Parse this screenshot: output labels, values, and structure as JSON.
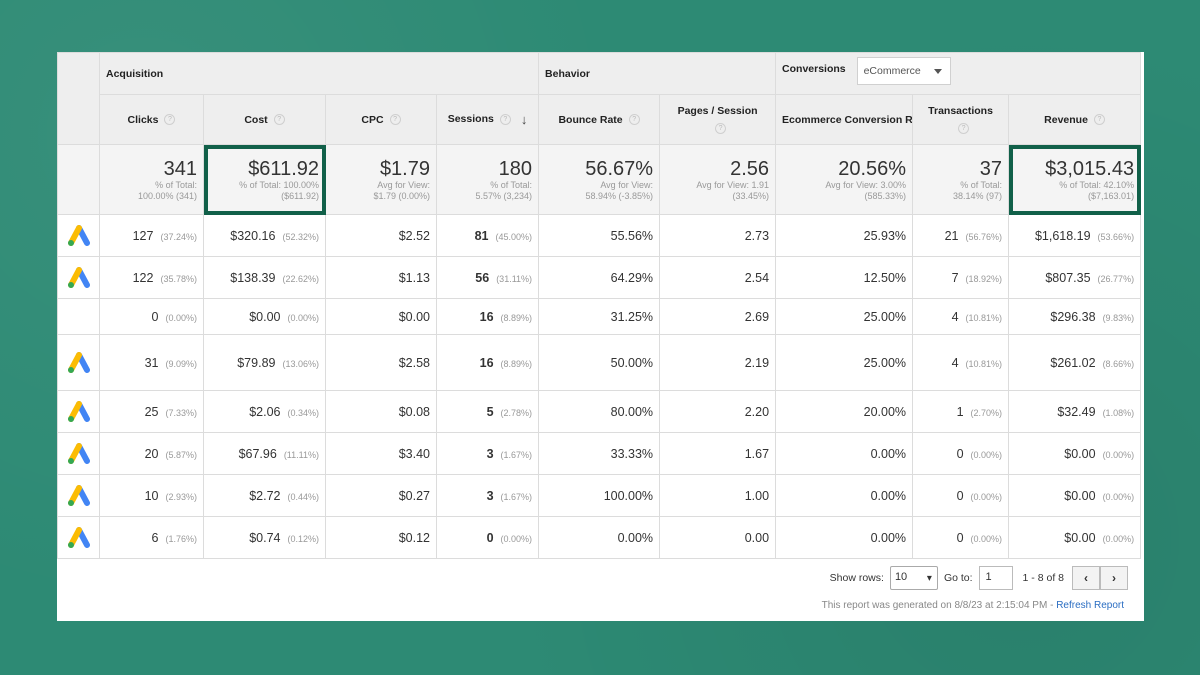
{
  "groups": {
    "acquisition": "Acquisition",
    "behavior": "Behavior",
    "conversions": "Conversions",
    "conversion_select": "eCommerce"
  },
  "columns": {
    "clicks": "Clicks",
    "cost": "Cost",
    "cpc": "CPC",
    "sessions": "Sessions",
    "bounce_rate": "Bounce Rate",
    "pages_session": "Pages / Session",
    "conversion_rate": "Ecommerce Conversion Rate",
    "transactions": "Transactions",
    "revenue": "Revenue"
  },
  "totals": {
    "clicks": {
      "value": "341",
      "sub1": "% of Total:",
      "sub2": "100.00% (341)"
    },
    "cost": {
      "value": "$611.92",
      "sub1": "% of Total: 100.00%",
      "sub2": "($611.92)"
    },
    "cpc": {
      "value": "$1.79",
      "sub1": "Avg for View:",
      "sub2": "$1.79 (0.00%)"
    },
    "sessions": {
      "value": "180",
      "sub1": "% of Total:",
      "sub2": "5.57% (3,234)"
    },
    "bounce_rate": {
      "value": "56.67%",
      "sub1": "Avg for View:",
      "sub2": "58.94% (-3.85%)"
    },
    "pages_session": {
      "value": "2.56",
      "sub1": "Avg for View: 1.91",
      "sub2": "(33.45%)"
    },
    "conversion_rate": {
      "value": "20.56%",
      "sub1": "Avg for View: 3.00%",
      "sub2": "(585.33%)"
    },
    "transactions": {
      "value": "37",
      "sub1": "% of Total:",
      "sub2": "38.14% (97)"
    },
    "revenue": {
      "value": "$3,015.43",
      "sub1": "% of Total: 42.10%",
      "sub2": "($7,163.01)"
    }
  },
  "rows": [
    {
      "icon": "google-ads-icon",
      "clicks": "127",
      "clicks_pct": "(37.24%)",
      "cost": "$320.16",
      "cost_pct": "(52.32%)",
      "cpc": "$2.52",
      "sessions": "81",
      "sessions_pct": "(45.00%)",
      "bounce": "55.56%",
      "pages": "2.73",
      "conv": "25.93%",
      "trans": "21",
      "trans_pct": "(56.76%)",
      "revenue": "$1,618.19",
      "revenue_pct": "(53.66%)"
    },
    {
      "icon": "google-ads-icon",
      "clicks": "122",
      "clicks_pct": "(35.78%)",
      "cost": "$138.39",
      "cost_pct": "(22.62%)",
      "cpc": "$1.13",
      "sessions": "56",
      "sessions_pct": "(31.11%)",
      "bounce": "64.29%",
      "pages": "2.54",
      "conv": "12.50%",
      "trans": "7",
      "trans_pct": "(18.92%)",
      "revenue": "$807.35",
      "revenue_pct": "(26.77%)"
    },
    {
      "icon": "",
      "clicks": "0",
      "clicks_pct": "(0.00%)",
      "cost": "$0.00",
      "cost_pct": "(0.00%)",
      "cpc": "$0.00",
      "sessions": "16",
      "sessions_pct": "(8.89%)",
      "bounce": "31.25%",
      "pages": "2.69",
      "conv": "25.00%",
      "trans": "4",
      "trans_pct": "(10.81%)",
      "revenue": "$296.38",
      "revenue_pct": "(9.83%)"
    },
    {
      "icon": "google-ads-icon",
      "clicks": "31",
      "clicks_pct": "(9.09%)",
      "cost": "$79.89",
      "cost_pct": "(13.06%)",
      "cpc": "$2.58",
      "sessions": "16",
      "sessions_pct": "(8.89%)",
      "bounce": "50.00%",
      "pages": "2.19",
      "conv": "25.00%",
      "trans": "4",
      "trans_pct": "(10.81%)",
      "revenue": "$261.02",
      "revenue_pct": "(8.66%)"
    },
    {
      "icon": "google-ads-icon",
      "clicks": "25",
      "clicks_pct": "(7.33%)",
      "cost": "$2.06",
      "cost_pct": "(0.34%)",
      "cpc": "$0.08",
      "sessions": "5",
      "sessions_pct": "(2.78%)",
      "bounce": "80.00%",
      "pages": "2.20",
      "conv": "20.00%",
      "trans": "1",
      "trans_pct": "(2.70%)",
      "revenue": "$32.49",
      "revenue_pct": "(1.08%)"
    },
    {
      "icon": "google-ads-icon",
      "clicks": "20",
      "clicks_pct": "(5.87%)",
      "cost": "$67.96",
      "cost_pct": "(11.11%)",
      "cpc": "$3.40",
      "sessions": "3",
      "sessions_pct": "(1.67%)",
      "bounce": "33.33%",
      "pages": "1.67",
      "conv": "0.00%",
      "trans": "0",
      "trans_pct": "(0.00%)",
      "revenue": "$0.00",
      "revenue_pct": "(0.00%)"
    },
    {
      "icon": "google-ads-icon",
      "clicks": "10",
      "clicks_pct": "(2.93%)",
      "cost": "$2.72",
      "cost_pct": "(0.44%)",
      "cpc": "$0.27",
      "sessions": "3",
      "sessions_pct": "(1.67%)",
      "bounce": "100.00%",
      "pages": "1.00",
      "conv": "0.00%",
      "trans": "0",
      "trans_pct": "(0.00%)",
      "revenue": "$0.00",
      "revenue_pct": "(0.00%)"
    },
    {
      "icon": "google-ads-icon",
      "clicks": "6",
      "clicks_pct": "(1.76%)",
      "cost": "$0.74",
      "cost_pct": "(0.12%)",
      "cpc": "$0.12",
      "sessions": "0",
      "sessions_pct": "(0.00%)",
      "bounce": "0.00%",
      "pages": "0.00",
      "conv": "0.00%",
      "trans": "0",
      "trans_pct": "(0.00%)",
      "revenue": "$0.00",
      "revenue_pct": "(0.00%)"
    }
  ],
  "pager": {
    "show_rows_label": "Show rows:",
    "show_rows_value": "10",
    "goto_label": "Go to:",
    "goto_value": "1",
    "range": "1 - 8 of 8",
    "prev": "‹",
    "next": "›"
  },
  "generated": {
    "text": "This report was generated on 8/8/23 at 2:15:04 PM - ",
    "link": "Refresh Report"
  },
  "colors": {
    "background": "#2d8a74",
    "highlight_border": "#116049",
    "ads_blue": "#4285f4",
    "ads_yellow": "#fbbc04",
    "ads_green": "#34a853"
  }
}
